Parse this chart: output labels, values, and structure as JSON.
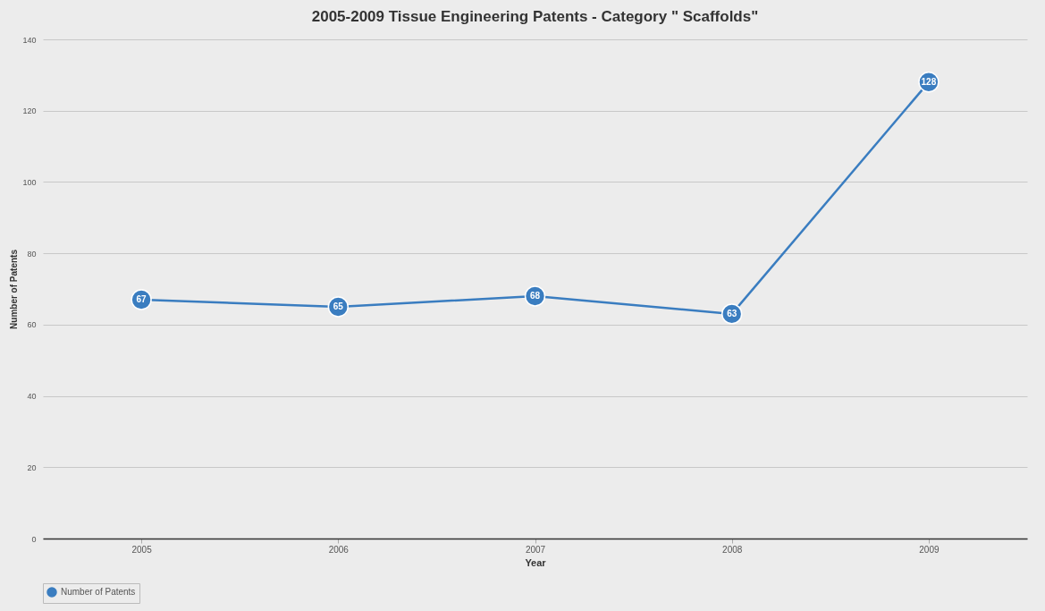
{
  "chart_data": {
    "type": "line",
    "title": "2005-2009  Tissue Engineering Patents - Category \" Scaffolds\"",
    "xlabel": "Year",
    "ylabel": "Number of Patents",
    "categories": [
      "2005",
      "2006",
      "2007",
      "2008",
      "2009"
    ],
    "series": [
      {
        "name": "Number of Patents",
        "color": "#3a7dc0",
        "values": [
          67,
          65,
          68,
          63,
          128
        ]
      }
    ],
    "ylim": [
      0,
      140
    ],
    "yticks": [
      0,
      20,
      40,
      60,
      80,
      100,
      120,
      140
    ],
    "grid": "y",
    "legend": "bottom",
    "marker": "circle",
    "line_style": "solid",
    "data_labels": true
  }
}
